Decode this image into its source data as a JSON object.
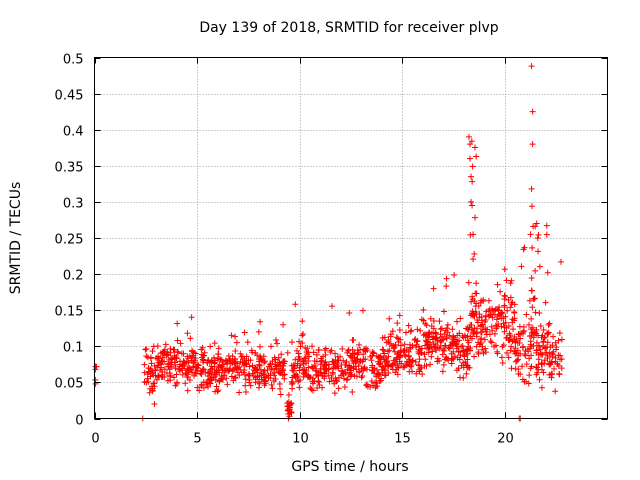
{
  "chart_data": {
    "type": "scatter",
    "title": "Day 139 of 2018, SRMTID for receiver plvp",
    "xlabel": "GPS time / hours",
    "ylabel": "SRMTID / TECUs",
    "xlim": [
      0,
      25
    ],
    "ylim": [
      0,
      0.5
    ],
    "xticks": [
      0,
      5,
      10,
      15,
      20
    ],
    "xtick_labels": [
      "0",
      "5",
      "10",
      "15",
      "20"
    ],
    "yticks": [
      0,
      0.05,
      0.1,
      0.15,
      0.2,
      0.25,
      0.3,
      0.35,
      0.4,
      0.45,
      0.5
    ],
    "ytick_labels": [
      "0",
      "0.05",
      "0.1",
      "0.15",
      "0.2",
      "0.25",
      "0.3",
      "0.35",
      "0.4",
      "0.45",
      "0.5"
    ],
    "grid": true,
    "marker": "+",
    "color": "#ff0000",
    "series": [
      {
        "name": "SRMTID",
        "segments": [
          {
            "x_start": 0.0,
            "x_end": 0.1,
            "n": 3,
            "base": 0.06,
            "spread": 0.02,
            "spike_prob": 0.0,
            "spike_max": 0.0
          },
          {
            "x_start": 2.4,
            "x_end": 3.0,
            "n": 40,
            "base": 0.06,
            "spread": 0.035,
            "spike_prob": 0.08,
            "spike_max": 0.14
          },
          {
            "x_start": 3.0,
            "x_end": 5.0,
            "n": 140,
            "base": 0.075,
            "spread": 0.03,
            "spike_prob": 0.06,
            "spike_max": 0.145
          },
          {
            "x_start": 5.0,
            "x_end": 7.5,
            "n": 170,
            "base": 0.068,
            "spread": 0.028,
            "spike_prob": 0.05,
            "spike_max": 0.13
          },
          {
            "x_start": 7.5,
            "x_end": 9.3,
            "n": 120,
            "base": 0.065,
            "spread": 0.028,
            "spike_prob": 0.07,
            "spike_max": 0.15
          },
          {
            "x_start": 9.3,
            "x_end": 9.6,
            "n": 20,
            "base": 0.02,
            "spread": 0.02,
            "spike_prob": 0.1,
            "spike_max": 0.14
          },
          {
            "x_start": 9.6,
            "x_end": 12.0,
            "n": 160,
            "base": 0.07,
            "spread": 0.03,
            "spike_prob": 0.06,
            "spike_max": 0.165
          },
          {
            "x_start": 12.0,
            "x_end": 14.0,
            "n": 130,
            "base": 0.072,
            "spread": 0.03,
            "spike_prob": 0.06,
            "spike_max": 0.155
          },
          {
            "x_start": 14.0,
            "x_end": 16.0,
            "n": 140,
            "base": 0.088,
            "spread": 0.03,
            "spike_prob": 0.07,
            "spike_max": 0.16
          },
          {
            "x_start": 16.0,
            "x_end": 17.5,
            "n": 110,
            "base": 0.1,
            "spread": 0.035,
            "spike_prob": 0.1,
            "spike_max": 0.205
          },
          {
            "x_start": 17.5,
            "x_end": 18.3,
            "n": 60,
            "base": 0.095,
            "spread": 0.035,
            "spike_prob": 0.1,
            "spike_max": 0.2
          },
          {
            "x_start": 18.3,
            "x_end": 18.6,
            "n": 35,
            "base": 0.13,
            "spread": 0.05,
            "spike_prob": 0.35,
            "spike_max": 0.39
          },
          {
            "x_start": 18.6,
            "x_end": 20.5,
            "n": 140,
            "base": 0.13,
            "spread": 0.045,
            "spike_prob": 0.1,
            "spike_max": 0.21
          },
          {
            "x_start": 20.5,
            "x_end": 21.3,
            "n": 60,
            "base": 0.09,
            "spread": 0.045,
            "spike_prob": 0.15,
            "spike_max": 0.27
          },
          {
            "x_start": 21.3,
            "x_end": 21.5,
            "n": 20,
            "base": 0.14,
            "spread": 0.06,
            "spike_prob": 0.45,
            "spike_max": 0.49
          },
          {
            "x_start": 21.5,
            "x_end": 22.8,
            "n": 100,
            "base": 0.085,
            "spread": 0.04,
            "spike_prob": 0.12,
            "spike_max": 0.27
          }
        ],
        "explicit_points": [
          {
            "x": 0.05,
            "y": 0.072
          },
          {
            "x": 0.05,
            "y": 0.048
          },
          {
            "x": 2.35,
            "y": 0.0
          },
          {
            "x": 9.45,
            "y": 0.0
          },
          {
            "x": 9.5,
            "y": 0.003
          },
          {
            "x": 18.25,
            "y": 0.39
          },
          {
            "x": 18.3,
            "y": 0.38
          },
          {
            "x": 18.3,
            "y": 0.36
          },
          {
            "x": 18.35,
            "y": 0.335
          },
          {
            "x": 18.35,
            "y": 0.3
          },
          {
            "x": 18.4,
            "y": 0.295
          },
          {
            "x": 18.45,
            "y": 0.255
          },
          {
            "x": 20.7,
            "y": 0.0
          },
          {
            "x": 20.75,
            "y": 0.0
          },
          {
            "x": 21.3,
            "y": 0.488
          },
          {
            "x": 21.35,
            "y": 0.425
          },
          {
            "x": 21.35,
            "y": 0.38
          },
          {
            "x": 21.3,
            "y": 0.318
          },
          {
            "x": 21.55,
            "y": 0.27
          },
          {
            "x": 21.6,
            "y": 0.25
          },
          {
            "x": 21.25,
            "y": 0.255
          }
        ]
      }
    ]
  }
}
